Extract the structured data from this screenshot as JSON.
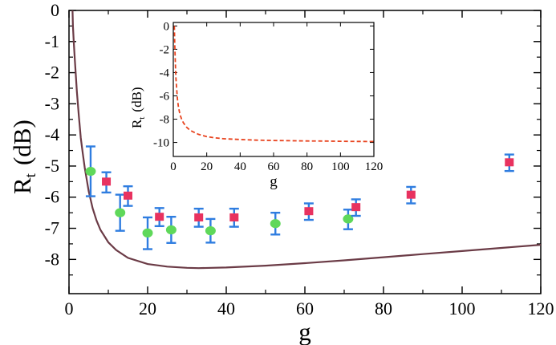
{
  "chart_data": [
    {
      "type": "scatter",
      "name": "main",
      "xlabel": "g",
      "ylabel_main": "R",
      "ylabel_sub": "t",
      "ylabel_unit": "(dB)",
      "xlim": [
        0,
        120
      ],
      "ylim": [
        -9.1,
        0
      ],
      "xticks": [
        0,
        20,
        40,
        60,
        80,
        100,
        120
      ],
      "yticks": [
        0,
        -1,
        -2,
        -3,
        -4,
        -5,
        -6,
        -7,
        -8
      ],
      "curve": {
        "name": "theory",
        "color": "#6b3b46",
        "x": [
          0.9,
          1.0,
          1.2,
          1.5,
          1.8,
          2.0,
          2.5,
          3.0,
          3.5,
          4.0,
          5.0,
          6.0,
          7.0,
          8.0,
          10.0,
          12.0,
          15.0,
          20.0,
          25.0,
          30.0,
          33.0,
          40.0,
          50.0,
          60.0,
          70.0,
          80.0,
          90.0,
          100.0,
          110.0,
          120.0
        ],
        "y": [
          0.0,
          -0.5,
          -1.0,
          -1.6,
          -2.2,
          -2.6,
          -3.4,
          -4.1,
          -4.6,
          -5.05,
          -5.8,
          -6.35,
          -6.75,
          -7.05,
          -7.45,
          -7.7,
          -7.95,
          -8.15,
          -8.23,
          -8.27,
          -8.28,
          -8.26,
          -8.2,
          -8.12,
          -8.03,
          -7.93,
          -7.83,
          -7.73,
          -7.63,
          -7.53
        ]
      },
      "series": [
        {
          "name": "green circles",
          "marker": "circle",
          "color": "#5fd85a",
          "error_color": "#2f7de0",
          "x": [
            5.5,
            13,
            20,
            26,
            36,
            52.5,
            71
          ],
          "y": [
            -5.17,
            -6.5,
            -7.15,
            -7.05,
            -7.08,
            -6.85,
            -6.7
          ],
          "yerr_low": [
            0.8,
            0.58,
            0.52,
            0.42,
            0.38,
            0.35,
            0.33
          ],
          "yerr_high": [
            0.8,
            0.58,
            0.5,
            0.42,
            0.38,
            0.35,
            0.3
          ]
        },
        {
          "name": "red squares",
          "marker": "square",
          "color": "#e8325f",
          "error_color": "#2f7de0",
          "x": [
            9.5,
            15,
            23,
            33,
            42,
            61,
            73,
            87,
            112
          ],
          "y": [
            -5.5,
            -5.95,
            -6.63,
            -6.65,
            -6.65,
            -6.45,
            -6.32,
            -5.92,
            -4.88
          ],
          "yerr_low": [
            0.35,
            0.33,
            0.3,
            0.3,
            0.3,
            0.28,
            0.28,
            0.28,
            0.28
          ],
          "yerr_high": [
            0.3,
            0.3,
            0.28,
            0.28,
            0.28,
            0.25,
            0.25,
            0.25,
            0.25
          ]
        }
      ]
    },
    {
      "type": "line",
      "name": "inset",
      "xlabel": "g",
      "ylabel_main": "R",
      "ylabel_sub": "t",
      "ylabel_unit": "(dB)",
      "xlim": [
        0,
        120
      ],
      "ylim": [
        -11.2,
        0.3
      ],
      "xticks": [
        0,
        20,
        40,
        60,
        80,
        100,
        120
      ],
      "yticks": [
        0,
        -2,
        -4,
        -6,
        -8,
        -10
      ],
      "series": [
        {
          "name": "inset curve",
          "style": "dashed",
          "color": "#e8421d",
          "x": [
            0.6,
            0.8,
            1.0,
            1.3,
            1.6,
            2.0,
            2.5,
            3.0,
            4.0,
            5.0,
            6.0,
            8.0,
            10.0,
            12.0,
            15.0,
            20.0,
            25.0,
            30.0,
            40.0,
            50.0,
            60.0,
            70.0,
            80.0,
            90.0,
            100.0,
            110.0,
            120.0
          ],
          "y": [
            0.0,
            -1.2,
            -2.2,
            -3.5,
            -4.5,
            -5.4,
            -6.3,
            -6.9,
            -7.6,
            -8.0,
            -8.3,
            -8.7,
            -8.95,
            -9.1,
            -9.3,
            -9.5,
            -9.6,
            -9.68,
            -9.75,
            -9.8,
            -9.83,
            -9.85,
            -9.87,
            -9.88,
            -9.9,
            -9.91,
            -9.92
          ]
        }
      ]
    }
  ]
}
